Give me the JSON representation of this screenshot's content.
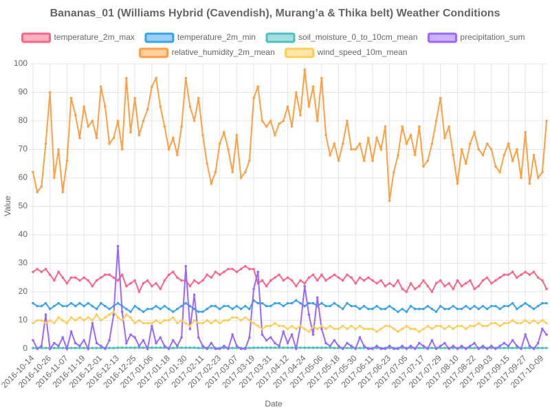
{
  "chart_data": {
    "type": "line",
    "title": "Bananas_01 (Williams Hybrid (Cavendish), Murang’a & Thika belt) Weather Conditions",
    "x_label": "Date",
    "y_label": "Value",
    "legend": "top",
    "grid": true,
    "ylim": [
      0,
      100
    ],
    "yticks": [
      0,
      10,
      20,
      30,
      40,
      50,
      60,
      70,
      80,
      90,
      100
    ],
    "categories": [
      "2016-10-14",
      null,
      null,
      null,
      "2016-10-26",
      null,
      null,
      null,
      "2016-11-07",
      null,
      null,
      null,
      "2016-11-19",
      null,
      null,
      null,
      "2016-12-01",
      null,
      null,
      null,
      "2016-12-13",
      null,
      null,
      null,
      "2016-12-25",
      null,
      null,
      null,
      "2017-01-06",
      null,
      null,
      null,
      "2017-01-18",
      null,
      null,
      null,
      "2017-01-30",
      null,
      null,
      null,
      "2017-02-11",
      null,
      null,
      null,
      "2017-02-23",
      null,
      null,
      null,
      "2017-03-07",
      null,
      null,
      null,
      "2017-03-19",
      null,
      null,
      null,
      "2017-03-31",
      null,
      null,
      null,
      "2017-04-12",
      null,
      null,
      null,
      "2017-04-24",
      null,
      null,
      null,
      "2017-05-06",
      null,
      null,
      null,
      "2017-05-18",
      null,
      null,
      null,
      "2017-05-30",
      null,
      null,
      null,
      "2017-06-11",
      null,
      null,
      null,
      "2017-06-23",
      null,
      null,
      null,
      "2017-07-05",
      null,
      null,
      null,
      "2017-07-17",
      null,
      null,
      null,
      "2017-07-29",
      null,
      null,
      null,
      "2017-08-10",
      null,
      null,
      null,
      "2017-08-22",
      null,
      null,
      null,
      "2017-09-03",
      null,
      null,
      null,
      "2017-09-15",
      null,
      null,
      null,
      "2017-09-27",
      null,
      null,
      null,
      "2017-10-09",
      null
    ],
    "series": [
      {
        "name": "temperature_2m_max",
        "color": "#ff6384",
        "values": [
          27,
          28,
          27,
          28,
          26,
          24,
          27,
          25,
          23,
          25,
          25,
          24,
          25,
          24,
          22,
          24,
          25,
          26,
          26,
          25,
          24,
          26,
          22,
          23,
          24,
          20,
          23,
          24,
          22,
          23,
          21,
          24,
          26,
          27,
          25,
          24,
          24,
          22,
          24,
          23,
          24,
          26,
          25,
          27,
          26,
          27,
          28,
          28,
          27,
          28,
          29,
          28,
          28,
          23,
          24,
          22,
          24,
          25,
          26,
          24,
          25,
          24,
          22,
          24,
          23,
          25,
          26,
          24,
          26,
          24,
          25,
          26,
          25,
          24,
          26,
          25,
          23,
          25,
          24,
          25,
          24,
          23,
          24,
          22,
          23,
          22,
          24,
          21,
          20,
          23,
          21,
          22,
          24,
          22,
          20,
          23,
          24,
          22,
          23,
          21,
          24,
          22,
          23,
          24,
          21,
          22,
          24,
          25,
          23,
          24,
          25,
          26,
          26,
          27,
          25,
          26,
          27,
          26,
          27,
          25,
          24,
          21
        ]
      },
      {
        "name": "temperature_2m_min",
        "color": "#36a2eb",
        "values": [
          16,
          15,
          15,
          16,
          14,
          15,
          16,
          15,
          15,
          16,
          15,
          16,
          15,
          16,
          15,
          14,
          16,
          15,
          14,
          15,
          16,
          15,
          14,
          13,
          15,
          14,
          13,
          14,
          14,
          15,
          14,
          15,
          14,
          13,
          14,
          15,
          16,
          15,
          14,
          13,
          13,
          14,
          15,
          15,
          14,
          15,
          15,
          14,
          15,
          14,
          15,
          14,
          17,
          16,
          16,
          15,
          15,
          16,
          16,
          15,
          16,
          16,
          17,
          16,
          15,
          16,
          16,
          15,
          16,
          15,
          15,
          16,
          15,
          14,
          16,
          15,
          15,
          14,
          15,
          14,
          14,
          15,
          14,
          14,
          15,
          14,
          13,
          14,
          13,
          15,
          14,
          14,
          14,
          15,
          14,
          13,
          15,
          14,
          14,
          15,
          14,
          14,
          15,
          14,
          15,
          14,
          15,
          14,
          15,
          15,
          14,
          15,
          15,
          16,
          14,
          15,
          16,
          15,
          14,
          15,
          16,
          16
        ]
      },
      {
        "name": "soil_moisture_0_to_10cm_mean",
        "color": "#4bc0c0",
        "values": [
          0.3,
          0.3,
          0.3,
          0.3,
          0.3,
          0.3,
          0.3,
          0.3,
          0.3,
          0.3,
          0.3,
          0.3,
          0.3,
          0.3,
          0.3,
          0.3,
          0.3,
          0.3,
          0.3,
          0.3,
          0.4,
          0.4,
          0.4,
          0.4,
          0.4,
          0.4,
          0.4,
          0.4,
          0.4,
          0.4,
          0.4,
          0.4,
          0.3,
          0.3,
          0.4,
          0.4,
          0.4,
          0.4,
          0.4,
          0.3,
          0.3,
          0.3,
          0.3,
          0.3,
          0.3,
          0.3,
          0.3,
          0.3,
          0.3,
          0.3,
          0.3,
          0.3,
          0.4,
          0.4,
          0.4,
          0.4,
          0.4,
          0.4,
          0.4,
          0.4,
          0.4,
          0.4,
          0.4,
          0.4,
          0.4,
          0.4,
          0.4,
          0.4,
          0.4,
          0.4,
          0.4,
          0.3,
          0.3,
          0.3,
          0.3,
          0.3,
          0.3,
          0.3,
          0.3,
          0.3,
          0.3,
          0.3,
          0.3,
          0.3,
          0.3,
          0.3,
          0.3,
          0.3,
          0.3,
          0.3,
          0.3,
          0.3,
          0.3,
          0.3,
          0.3,
          0.3,
          0.3,
          0.3,
          0.3,
          0.3,
          0.3,
          0.3,
          0.3,
          0.3,
          0.3,
          0.3,
          0.3,
          0.3,
          0.3,
          0.3,
          0.3,
          0.3,
          0.3,
          0.3,
          0.3,
          0.3,
          0.3,
          0.3,
          0.3,
          0.3,
          0.3,
          0.3
        ]
      },
      {
        "name": "precipitation_sum",
        "color": "#9966ff",
        "values": [
          3,
          0,
          1,
          12,
          0,
          2,
          1,
          4,
          0,
          6,
          2,
          1,
          3,
          0,
          9,
          2,
          1,
          0,
          3,
          12,
          36,
          13,
          2,
          5,
          4,
          1,
          3,
          0,
          8,
          2,
          4,
          1,
          0,
          3,
          1,
          4,
          29,
          7,
          19,
          4,
          1,
          0,
          2,
          0,
          0,
          1,
          0,
          5,
          1,
          0,
          0,
          4,
          21,
          27,
          5,
          3,
          4,
          2,
          1,
          6,
          2,
          5,
          0,
          8,
          22,
          12,
          5,
          18,
          7,
          2,
          1,
          3,
          1,
          0,
          2,
          1,
          0,
          4,
          1,
          0,
          0,
          1,
          0,
          0,
          1,
          0,
          0,
          1,
          0,
          1,
          0,
          2,
          1,
          0,
          3,
          0,
          1,
          2,
          0,
          1,
          0,
          1,
          0,
          1,
          2,
          0,
          1,
          0,
          1,
          0,
          1,
          2,
          1,
          3,
          1,
          0,
          5,
          1,
          0,
          2,
          7,
          5
        ]
      },
      {
        "name": "relative_humidity_2m_mean",
        "color": "#ff9f40",
        "values": [
          62,
          55,
          57,
          72,
          90,
          60,
          70,
          55,
          66,
          88,
          82,
          74,
          85,
          78,
          80,
          74,
          92,
          85,
          72,
          74,
          80,
          70,
          95,
          76,
          88,
          75,
          80,
          84,
          92,
          95,
          85,
          78,
          70,
          74,
          68,
          78,
          95,
          85,
          80,
          88,
          75,
          65,
          58,
          62,
          72,
          76,
          70,
          62,
          75,
          60,
          62,
          66,
          88,
          92,
          80,
          78,
          80,
          75,
          79,
          80,
          85,
          78,
          90,
          82,
          98,
          85,
          92,
          80,
          95,
          75,
          68,
          72,
          66,
          72,
          80,
          70,
          70,
          72,
          66,
          74,
          66,
          74,
          70,
          78,
          52,
          62,
          68,
          78,
          72,
          75,
          68,
          78,
          64,
          66,
          72,
          80,
          88,
          74,
          78,
          68,
          58,
          70,
          65,
          72,
          76,
          70,
          68,
          72,
          70,
          64,
          62,
          68,
          72,
          66,
          70,
          60,
          76,
          58,
          68,
          60,
          62,
          80
        ]
      },
      {
        "name": "wind_speed_10m_mean",
        "color": "#ffcd56",
        "values": [
          9,
          10,
          10,
          9,
          10,
          9,
          11,
          10,
          9,
          11,
          10,
          11,
          10,
          11,
          10,
          12,
          10,
          11,
          12,
          13,
          11,
          10,
          12,
          11,
          9,
          10,
          9,
          9,
          9,
          10,
          9,
          10,
          10,
          11,
          9,
          10,
          9,
          8,
          10,
          9,
          9,
          10,
          9,
          10,
          9,
          10,
          10,
          11,
          11,
          10,
          11,
          10,
          9,
          8,
          7,
          8,
          8,
          9,
          8,
          8,
          7,
          8,
          7,
          8,
          7,
          6,
          8,
          7,
          8,
          7,
          8,
          7,
          7,
          8,
          7,
          8,
          7,
          8,
          7,
          7,
          7,
          6,
          7,
          8,
          8,
          7,
          6,
          7,
          8,
          7,
          7,
          6,
          7,
          8,
          7,
          8,
          8,
          7,
          8,
          7,
          8,
          8,
          7,
          8,
          8,
          9,
          8,
          8,
          9,
          9,
          8,
          9,
          9,
          10,
          9,
          9,
          10,
          9,
          10,
          9,
          10,
          9
        ]
      }
    ]
  }
}
